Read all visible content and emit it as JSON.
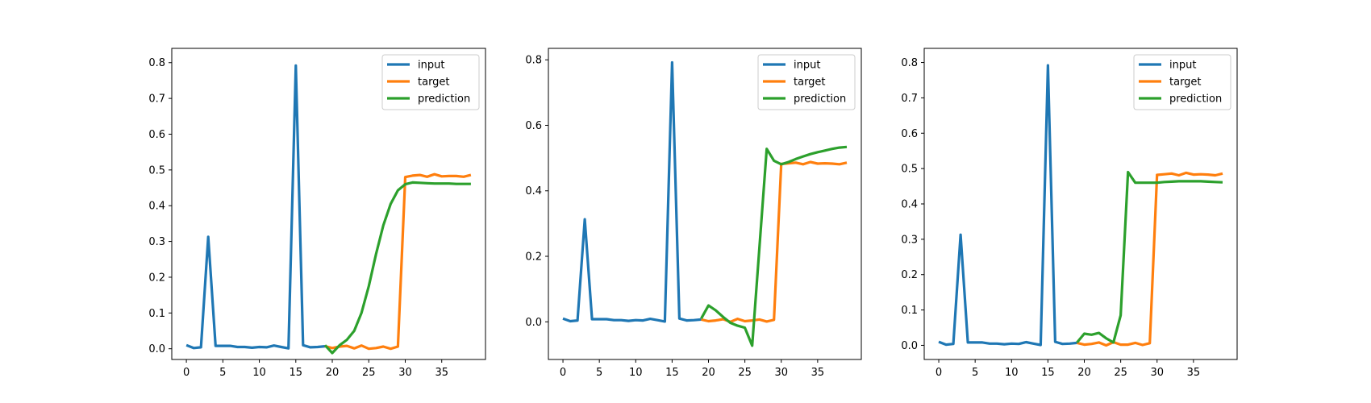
{
  "chart_data": [
    {
      "type": "line",
      "xlim": [
        -2,
        41
      ],
      "ylim": [
        -0.03,
        0.84
      ],
      "xticks": [
        0,
        5,
        10,
        15,
        20,
        25,
        30,
        35
      ],
      "yticks": [
        0.0,
        0.1,
        0.2,
        0.3,
        0.4,
        0.5,
        0.6,
        0.7,
        0.8
      ],
      "ytick_labels": [
        "0.0",
        "0.1",
        "0.2",
        "0.3",
        "0.4",
        "0.5",
        "0.6",
        "0.7",
        "0.8"
      ],
      "legend": "top-right",
      "series": [
        {
          "name": "input",
          "color": "#1f77b4",
          "x": [
            0,
            1,
            2,
            3,
            4,
            5,
            6,
            7,
            8,
            9,
            10,
            11,
            12,
            13,
            14,
            15,
            16,
            17,
            18,
            19
          ],
          "y": [
            0.01,
            0.002,
            0.004,
            0.313,
            0.008,
            0.008,
            0.008,
            0.005,
            0.005,
            0.003,
            0.005,
            0.004,
            0.009,
            0.005,
            0.001,
            0.792,
            0.01,
            0.004,
            0.005,
            0.007
          ]
        },
        {
          "name": "target",
          "color": "#ff7f0e",
          "x": [
            19,
            20,
            21,
            22,
            23,
            24,
            25,
            26,
            27,
            28,
            29,
            30,
            31,
            32,
            33,
            34,
            35,
            36,
            37,
            38,
            39
          ],
          "y": [
            0.007,
            0.002,
            0.006,
            0.008,
            0.001,
            0.009,
            0.0,
            0.002,
            0.006,
            0.0,
            0.006,
            0.48,
            0.484,
            0.486,
            0.481,
            0.488,
            0.482,
            0.483,
            0.483,
            0.481,
            0.486
          ]
        },
        {
          "name": "prediction",
          "color": "#2ca02c",
          "x": [
            19,
            20,
            21,
            22,
            23,
            24,
            25,
            26,
            27,
            28,
            29,
            30,
            31,
            32,
            33,
            34,
            35,
            36,
            37,
            38,
            39
          ],
          "y": [
            0.01,
            -0.012,
            0.01,
            0.025,
            0.05,
            0.1,
            0.175,
            0.265,
            0.345,
            0.405,
            0.443,
            0.46,
            0.465,
            0.464,
            0.463,
            0.462,
            0.462,
            0.462,
            0.461,
            0.461,
            0.461
          ]
        }
      ]
    },
    {
      "type": "line",
      "xlim": [
        -2,
        41
      ],
      "ylim": [
        -0.115,
        0.835
      ],
      "xticks": [
        0,
        5,
        10,
        15,
        20,
        25,
        30,
        35
      ],
      "yticks": [
        0.0,
        0.2,
        0.4,
        0.6,
        0.8
      ],
      "ytick_labels": [
        "0.0",
        "0.2",
        "0.4",
        "0.6",
        "0.8"
      ],
      "legend": "top-right",
      "series": [
        {
          "name": "input",
          "color": "#1f77b4",
          "x": [
            0,
            1,
            2,
            3,
            4,
            5,
            6,
            7,
            8,
            9,
            10,
            11,
            12,
            13,
            14,
            15,
            16,
            17,
            18,
            19
          ],
          "y": [
            0.01,
            0.002,
            0.004,
            0.313,
            0.008,
            0.008,
            0.008,
            0.005,
            0.005,
            0.003,
            0.005,
            0.004,
            0.009,
            0.005,
            0.001,
            0.792,
            0.01,
            0.004,
            0.005,
            0.007
          ]
        },
        {
          "name": "target",
          "color": "#ff7f0e",
          "x": [
            19,
            20,
            21,
            22,
            23,
            24,
            25,
            26,
            27,
            28,
            29,
            30,
            31,
            32,
            33,
            34,
            35,
            36,
            37,
            38,
            39
          ],
          "y": [
            0.007,
            0.002,
            0.004,
            0.008,
            0.0,
            0.009,
            0.002,
            0.004,
            0.007,
            0.001,
            0.006,
            0.482,
            0.484,
            0.486,
            0.481,
            0.488,
            0.483,
            0.484,
            0.483,
            0.481,
            0.486
          ]
        },
        {
          "name": "prediction",
          "color": "#2ca02c",
          "x": [
            19,
            20,
            21,
            22,
            23,
            24,
            25,
            26,
            27,
            28,
            29,
            30,
            31,
            32,
            33,
            34,
            35,
            36,
            37,
            38,
            39
          ],
          "y": [
            0.01,
            0.05,
            0.035,
            0.015,
            -0.003,
            -0.012,
            -0.018,
            -0.073,
            0.228,
            0.528,
            0.492,
            0.481,
            0.488,
            0.497,
            0.505,
            0.512,
            0.518,
            0.523,
            0.528,
            0.532,
            0.534
          ]
        }
      ]
    },
    {
      "type": "line",
      "xlim": [
        -2,
        41
      ],
      "ylim": [
        -0.04,
        0.84
      ],
      "xticks": [
        0,
        5,
        10,
        15,
        20,
        25,
        30,
        35
      ],
      "yticks": [
        0.0,
        0.1,
        0.2,
        0.3,
        0.4,
        0.5,
        0.6,
        0.7,
        0.8
      ],
      "ytick_labels": [
        "0.0",
        "0.1",
        "0.2",
        "0.3",
        "0.4",
        "0.5",
        "0.6",
        "0.7",
        "0.8"
      ],
      "legend": "top-right",
      "series": [
        {
          "name": "input",
          "color": "#1f77b4",
          "x": [
            0,
            1,
            2,
            3,
            4,
            5,
            6,
            7,
            8,
            9,
            10,
            11,
            12,
            13,
            14,
            15,
            16,
            17,
            18,
            19
          ],
          "y": [
            0.01,
            0.002,
            0.004,
            0.313,
            0.008,
            0.008,
            0.008,
            0.005,
            0.005,
            0.003,
            0.005,
            0.004,
            0.009,
            0.005,
            0.001,
            0.792,
            0.01,
            0.004,
            0.005,
            0.007
          ]
        },
        {
          "name": "target",
          "color": "#ff7f0e",
          "x": [
            19,
            20,
            21,
            22,
            23,
            24,
            25,
            26,
            27,
            28,
            29,
            30,
            31,
            32,
            33,
            34,
            35,
            36,
            37,
            38,
            39
          ],
          "y": [
            0.007,
            0.002,
            0.004,
            0.008,
            0.0,
            0.009,
            0.002,
            0.002,
            0.007,
            0.001,
            0.006,
            0.482,
            0.484,
            0.486,
            0.481,
            0.488,
            0.483,
            0.484,
            0.483,
            0.481,
            0.486
          ]
        },
        {
          "name": "prediction",
          "color": "#2ca02c",
          "x": [
            19,
            20,
            21,
            22,
            23,
            24,
            25,
            26,
            27,
            28,
            29,
            30,
            31,
            32,
            33,
            34,
            35,
            36,
            37,
            38,
            39
          ],
          "y": [
            0.008,
            0.033,
            0.03,
            0.035,
            0.02,
            0.008,
            0.085,
            0.49,
            0.46,
            0.46,
            0.46,
            0.46,
            0.462,
            0.463,
            0.464,
            0.464,
            0.464,
            0.464,
            0.463,
            0.462,
            0.461
          ]
        }
      ]
    }
  ]
}
